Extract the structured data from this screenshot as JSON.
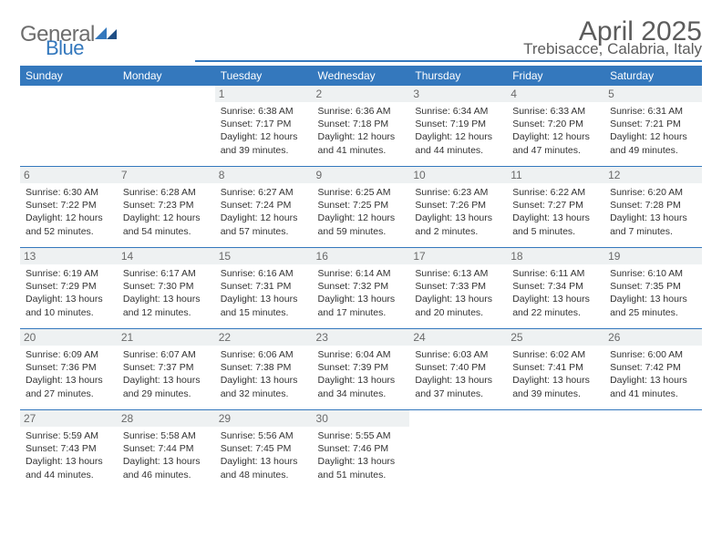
{
  "logo": {
    "word1": "General",
    "word2": "Blue"
  },
  "title": "April 2025",
  "location": "Trebisacce, Calabria, Italy",
  "colors": {
    "brand": "#3478bd",
    "grayText": "#6d6d6d",
    "headerGray": "#5c5c5c",
    "dayBg": "#eef1f2",
    "bg": "#ffffff"
  },
  "dayHeaders": [
    "Sunday",
    "Monday",
    "Tuesday",
    "Wednesday",
    "Thursday",
    "Friday",
    "Saturday"
  ],
  "weeks": [
    [
      null,
      null,
      {
        "n": "1",
        "sr": "6:38 AM",
        "ss": "7:17 PM",
        "dl": "12 hours and 39 minutes."
      },
      {
        "n": "2",
        "sr": "6:36 AM",
        "ss": "7:18 PM",
        "dl": "12 hours and 41 minutes."
      },
      {
        "n": "3",
        "sr": "6:34 AM",
        "ss": "7:19 PM",
        "dl": "12 hours and 44 minutes."
      },
      {
        "n": "4",
        "sr": "6:33 AM",
        "ss": "7:20 PM",
        "dl": "12 hours and 47 minutes."
      },
      {
        "n": "5",
        "sr": "6:31 AM",
        "ss": "7:21 PM",
        "dl": "12 hours and 49 minutes."
      }
    ],
    [
      {
        "n": "6",
        "sr": "6:30 AM",
        "ss": "7:22 PM",
        "dl": "12 hours and 52 minutes."
      },
      {
        "n": "7",
        "sr": "6:28 AM",
        "ss": "7:23 PM",
        "dl": "12 hours and 54 minutes."
      },
      {
        "n": "8",
        "sr": "6:27 AM",
        "ss": "7:24 PM",
        "dl": "12 hours and 57 minutes."
      },
      {
        "n": "9",
        "sr": "6:25 AM",
        "ss": "7:25 PM",
        "dl": "12 hours and 59 minutes."
      },
      {
        "n": "10",
        "sr": "6:23 AM",
        "ss": "7:26 PM",
        "dl": "13 hours and 2 minutes."
      },
      {
        "n": "11",
        "sr": "6:22 AM",
        "ss": "7:27 PM",
        "dl": "13 hours and 5 minutes."
      },
      {
        "n": "12",
        "sr": "6:20 AM",
        "ss": "7:28 PM",
        "dl": "13 hours and 7 minutes."
      }
    ],
    [
      {
        "n": "13",
        "sr": "6:19 AM",
        "ss": "7:29 PM",
        "dl": "13 hours and 10 minutes."
      },
      {
        "n": "14",
        "sr": "6:17 AM",
        "ss": "7:30 PM",
        "dl": "13 hours and 12 minutes."
      },
      {
        "n": "15",
        "sr": "6:16 AM",
        "ss": "7:31 PM",
        "dl": "13 hours and 15 minutes."
      },
      {
        "n": "16",
        "sr": "6:14 AM",
        "ss": "7:32 PM",
        "dl": "13 hours and 17 minutes."
      },
      {
        "n": "17",
        "sr": "6:13 AM",
        "ss": "7:33 PM",
        "dl": "13 hours and 20 minutes."
      },
      {
        "n": "18",
        "sr": "6:11 AM",
        "ss": "7:34 PM",
        "dl": "13 hours and 22 minutes."
      },
      {
        "n": "19",
        "sr": "6:10 AM",
        "ss": "7:35 PM",
        "dl": "13 hours and 25 minutes."
      }
    ],
    [
      {
        "n": "20",
        "sr": "6:09 AM",
        "ss": "7:36 PM",
        "dl": "13 hours and 27 minutes."
      },
      {
        "n": "21",
        "sr": "6:07 AM",
        "ss": "7:37 PM",
        "dl": "13 hours and 29 minutes."
      },
      {
        "n": "22",
        "sr": "6:06 AM",
        "ss": "7:38 PM",
        "dl": "13 hours and 32 minutes."
      },
      {
        "n": "23",
        "sr": "6:04 AM",
        "ss": "7:39 PM",
        "dl": "13 hours and 34 minutes."
      },
      {
        "n": "24",
        "sr": "6:03 AM",
        "ss": "7:40 PM",
        "dl": "13 hours and 37 minutes."
      },
      {
        "n": "25",
        "sr": "6:02 AM",
        "ss": "7:41 PM",
        "dl": "13 hours and 39 minutes."
      },
      {
        "n": "26",
        "sr": "6:00 AM",
        "ss": "7:42 PM",
        "dl": "13 hours and 41 minutes."
      }
    ],
    [
      {
        "n": "27",
        "sr": "5:59 AM",
        "ss": "7:43 PM",
        "dl": "13 hours and 44 minutes."
      },
      {
        "n": "28",
        "sr": "5:58 AM",
        "ss": "7:44 PM",
        "dl": "13 hours and 46 minutes."
      },
      {
        "n": "29",
        "sr": "5:56 AM",
        "ss": "7:45 PM",
        "dl": "13 hours and 48 minutes."
      },
      {
        "n": "30",
        "sr": "5:55 AM",
        "ss": "7:46 PM",
        "dl": "13 hours and 51 minutes."
      },
      null,
      null,
      null
    ]
  ],
  "labels": {
    "sunrise": "Sunrise:",
    "sunset": "Sunset:",
    "daylight": "Daylight:"
  }
}
